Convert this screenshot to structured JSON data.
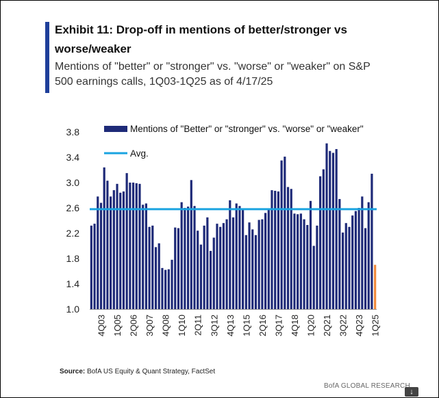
{
  "header": {
    "title": "Exhibit 11: Drop-off in mentions of better/stronger vs worse/weaker",
    "subtitle": "Mentions of \"better\" or \"stronger\" vs. \"worse\" or \"weaker\" on S&P 500 earnings calls, 1Q03-1Q25 as of 4/17/25"
  },
  "footer": {
    "source_label": "Source:",
    "source_text": " BofA US Equity & Quant Strategy, FactSet",
    "brand": "BofA GLOBAL RESEARCH",
    "download_icon": "download-arrow-icon",
    "download_glyph": "↓"
  },
  "chart_data": {
    "type": "bar",
    "ylim": [
      1.0,
      3.8
    ],
    "yticks": [
      1.0,
      1.4,
      1.8,
      2.2,
      2.6,
      3.0,
      3.4,
      3.8
    ],
    "ytick_labels": [
      "1.0",
      "1.4",
      "1.8",
      "2.2",
      "2.6",
      "3.0",
      "3.4",
      "3.8"
    ],
    "xtick_labels": [
      "4Q03",
      "1Q05",
      "2Q06",
      "3Q07",
      "4Q08",
      "1Q10",
      "2Q11",
      "3Q12",
      "4Q13",
      "1Q15",
      "2Q16",
      "3Q17",
      "4Q18",
      "1Q20",
      "2Q21",
      "3Q22",
      "4Q23",
      "1Q25"
    ],
    "legend": [
      {
        "label": "Mentions of \"Better\" or \"stronger\" vs. \"worse\" or \"weaker\"",
        "kind": "bar",
        "color": "#1e2a78"
      },
      {
        "label": "Avg.",
        "kind": "line",
        "color": "#1aa3e0"
      }
    ],
    "legend_position": "top",
    "average": 2.58,
    "bar_color": "#1e2a78",
    "latest_bar_color": "#f08a3c",
    "avg_color": "#1aa3e0",
    "categories": [
      "1Q03",
      "2Q03",
      "3Q03",
      "4Q03",
      "1Q04",
      "2Q04",
      "3Q04",
      "4Q04",
      "1Q05",
      "2Q05",
      "3Q05",
      "4Q05",
      "1Q06",
      "2Q06",
      "3Q06",
      "4Q06",
      "1Q07",
      "2Q07",
      "3Q07",
      "4Q07",
      "1Q08",
      "2Q08",
      "3Q08",
      "4Q08",
      "1Q09",
      "2Q09",
      "3Q09",
      "4Q09",
      "1Q10",
      "2Q10",
      "3Q10",
      "4Q10",
      "1Q11",
      "2Q11",
      "3Q11",
      "4Q11",
      "1Q12",
      "2Q12",
      "3Q12",
      "4Q12",
      "1Q13",
      "2Q13",
      "3Q13",
      "4Q13",
      "1Q14",
      "2Q14",
      "3Q14",
      "4Q14",
      "1Q15",
      "2Q15",
      "3Q15",
      "4Q15",
      "1Q16",
      "2Q16",
      "3Q16",
      "4Q16",
      "1Q17",
      "2Q17",
      "3Q17",
      "4Q17",
      "1Q18",
      "2Q18",
      "3Q18",
      "4Q18",
      "1Q19",
      "2Q19",
      "3Q19",
      "4Q19",
      "1Q20",
      "2Q20",
      "3Q20",
      "4Q20",
      "1Q21",
      "2Q21",
      "3Q21",
      "4Q21",
      "1Q22",
      "2Q22",
      "3Q22",
      "4Q22",
      "1Q23",
      "2Q23",
      "3Q23",
      "4Q23",
      "1Q24",
      "2Q24",
      "3Q24",
      "4Q24",
      "1Q25"
    ],
    "values": [
      2.32,
      2.35,
      2.78,
      2.68,
      3.24,
      3.03,
      2.78,
      2.88,
      2.98,
      2.84,
      2.86,
      3.15,
      3.0,
      3.0,
      2.99,
      2.98,
      2.65,
      2.67,
      2.3,
      2.32,
      1.98,
      2.04,
      1.65,
      1.62,
      1.63,
      1.78,
      2.29,
      2.28,
      2.69,
      2.6,
      2.62,
      3.04,
      2.63,
      2.24,
      2.02,
      2.32,
      2.45,
      1.92,
      2.13,
      2.35,
      2.3,
      2.36,
      2.42,
      2.72,
      2.45,
      2.67,
      2.63,
      2.57,
      2.17,
      2.37,
      2.26,
      2.17,
      2.41,
      2.42,
      2.52,
      2.58,
      2.88,
      2.87,
      2.86,
      3.35,
      3.41,
      2.93,
      2.9,
      2.51,
      2.5,
      2.51,
      2.42,
      2.33,
      2.71,
      2.0,
      2.32,
      3.1,
      3.21,
      3.62,
      3.5,
      3.47,
      3.53,
      2.74,
      2.21,
      2.36,
      2.3,
      2.48,
      2.55,
      2.6,
      2.78,
      2.28,
      2.69,
      3.14,
      1.7
    ]
  }
}
